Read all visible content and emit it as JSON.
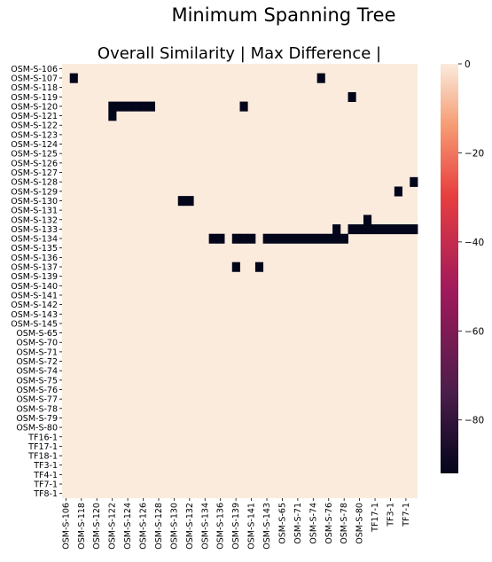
{
  "suptitle": "Minimum Spanning Tree",
  "colors": {
    "background_cell": "#faebdd",
    "edge_cell": "#03051a",
    "colormap": [
      "#03051a",
      "#4c1d4b",
      "#a11a5b",
      "#e83f3f",
      "#f69c73",
      "#faebdd"
    ]
  },
  "chart_data": {
    "type": "heatmap",
    "title": "Overall Similarity | Max Difference |",
    "row_labels": [
      "OSM-S-106",
      "OSM-S-107",
      "OSM-S-118",
      "OSM-S-119",
      "OSM-S-120",
      "OSM-S-121",
      "OSM-S-122",
      "OSM-S-123",
      "OSM-S-124",
      "OSM-S-125",
      "OSM-S-126",
      "OSM-S-127",
      "OSM-S-128",
      "OSM-S-129",
      "OSM-S-130",
      "OSM-S-131",
      "OSM-S-132",
      "OSM-S-133",
      "OSM-S-134",
      "OSM-S-135",
      "OSM-S-136",
      "OSM-S-137",
      "OSM-S-139",
      "OSM-S-140",
      "OSM-S-141",
      "OSM-S-142",
      "OSM-S-143",
      "OSM-S-145",
      "OSM-S-65",
      "OSM-S-70",
      "OSM-S-71",
      "OSM-S-72",
      "OSM-S-74",
      "OSM-S-75",
      "OSM-S-76",
      "OSM-S-77",
      "OSM-S-78",
      "OSM-S-79",
      "OSM-S-80",
      "TF16-1",
      "TF17-1",
      "TF18-1",
      "TF3-1",
      "TF4-1",
      "TF7-1",
      "TF8-1"
    ],
    "col_labels": [
      "OSM-S-106",
      "OSM-S-118",
      "OSM-S-120",
      "OSM-S-122",
      "OSM-S-124",
      "OSM-S-126",
      "OSM-S-128",
      "OSM-S-130",
      "OSM-S-132",
      "OSM-S-134",
      "OSM-S-136",
      "OSM-S-139",
      "OSM-S-141",
      "OSM-S-143",
      "OSM-S-65",
      "OSM-S-71",
      "OSM-S-74",
      "OSM-S-76",
      "OSM-S-78",
      "OSM-S-80",
      "TF17-1",
      "TF3-1",
      "TF7-1"
    ],
    "columns_total": 46,
    "values": "cells equal 0 except listed edge cells, which are at the dark end of the scale (about -90)",
    "edge_value": -90,
    "default_value": 0,
    "edges": [
      [
        1,
        1
      ],
      [
        1,
        33
      ],
      [
        3,
        37
      ],
      [
        4,
        6
      ],
      [
        4,
        7
      ],
      [
        4,
        8
      ],
      [
        4,
        9
      ],
      [
        4,
        10
      ],
      [
        4,
        11
      ],
      [
        4,
        23
      ],
      [
        5,
        6
      ],
      [
        12,
        45
      ],
      [
        13,
        43
      ],
      [
        14,
        15
      ],
      [
        14,
        16
      ],
      [
        16,
        39
      ],
      [
        17,
        35
      ],
      [
        17,
        37
      ],
      [
        17,
        38
      ],
      [
        17,
        39
      ],
      [
        17,
        40
      ],
      [
        17,
        41
      ],
      [
        17,
        42
      ],
      [
        17,
        43
      ],
      [
        17,
        44
      ],
      [
        17,
        45
      ],
      [
        18,
        19
      ],
      [
        18,
        20
      ],
      [
        18,
        22
      ],
      [
        18,
        23
      ],
      [
        18,
        24
      ],
      [
        18,
        26
      ],
      [
        18,
        27
      ],
      [
        18,
        28
      ],
      [
        18,
        29
      ],
      [
        18,
        30
      ],
      [
        18,
        31
      ],
      [
        18,
        32
      ],
      [
        18,
        33
      ],
      [
        18,
        34
      ],
      [
        18,
        35
      ],
      [
        18,
        36
      ],
      [
        21,
        22
      ],
      [
        21,
        25
      ]
    ],
    "colorbar": {
      "vmin": -92,
      "vmax": 0,
      "ticks": [
        0,
        -20,
        -40,
        -60,
        -80
      ]
    }
  }
}
